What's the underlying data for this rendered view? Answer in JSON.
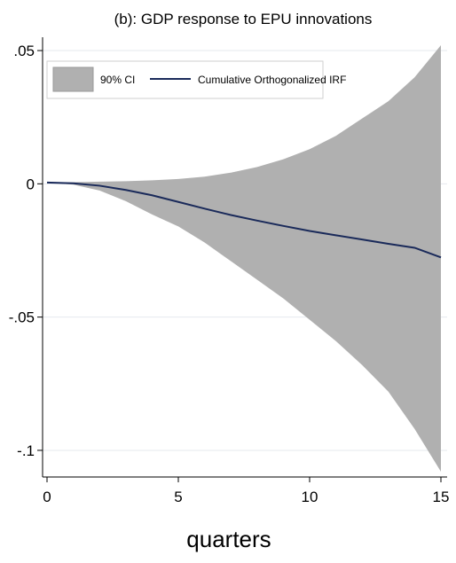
{
  "chart_data": {
    "type": "area",
    "title": "(b): GDP response to EPU innovations",
    "xlabel": "quarters",
    "ylabel": "",
    "xlim": [
      0,
      15
    ],
    "ylim": [
      -0.11,
      0.055
    ],
    "x_ticks": [
      0,
      5,
      10,
      15
    ],
    "x_tick_labels": [
      "0",
      "5",
      "10",
      "15"
    ],
    "y_ticks": [
      0.05,
      0,
      -0.05,
      -0.1
    ],
    "y_tick_labels": [
      ".05",
      "0",
      "-.05",
      "-.1"
    ],
    "grid": true,
    "legend_position": "top-left",
    "x": [
      0,
      1,
      2,
      3,
      4,
      5,
      6,
      7,
      8,
      9,
      10,
      11,
      12,
      13,
      14,
      15
    ],
    "series": [
      {
        "name": "90% CI",
        "kind": "band",
        "color": "#b0b0b0",
        "upper": [
          0.0005,
          0.0006,
          0.0008,
          0.001,
          0.0013,
          0.0018,
          0.0027,
          0.0042,
          0.0063,
          0.0092,
          0.013,
          0.018,
          0.0245,
          0.031,
          0.04,
          0.052
        ],
        "lower": [
          0.0005,
          -0.0003,
          -0.0025,
          -0.0065,
          -0.0115,
          -0.016,
          -0.022,
          -0.029,
          -0.036,
          -0.043,
          -0.051,
          -0.059,
          -0.068,
          -0.078,
          -0.092,
          -0.108
        ]
      },
      {
        "name": "Cumulative Orthogonalized IRF",
        "kind": "line",
        "color": "#1a2a5a",
        "values": [
          0.0005,
          0.0002,
          -0.0007,
          -0.0023,
          -0.0043,
          -0.0068,
          -0.0093,
          -0.0117,
          -0.0138,
          -0.0158,
          -0.0177,
          -0.0193,
          -0.0209,
          -0.0225,
          -0.024,
          -0.0276
        ]
      }
    ]
  }
}
